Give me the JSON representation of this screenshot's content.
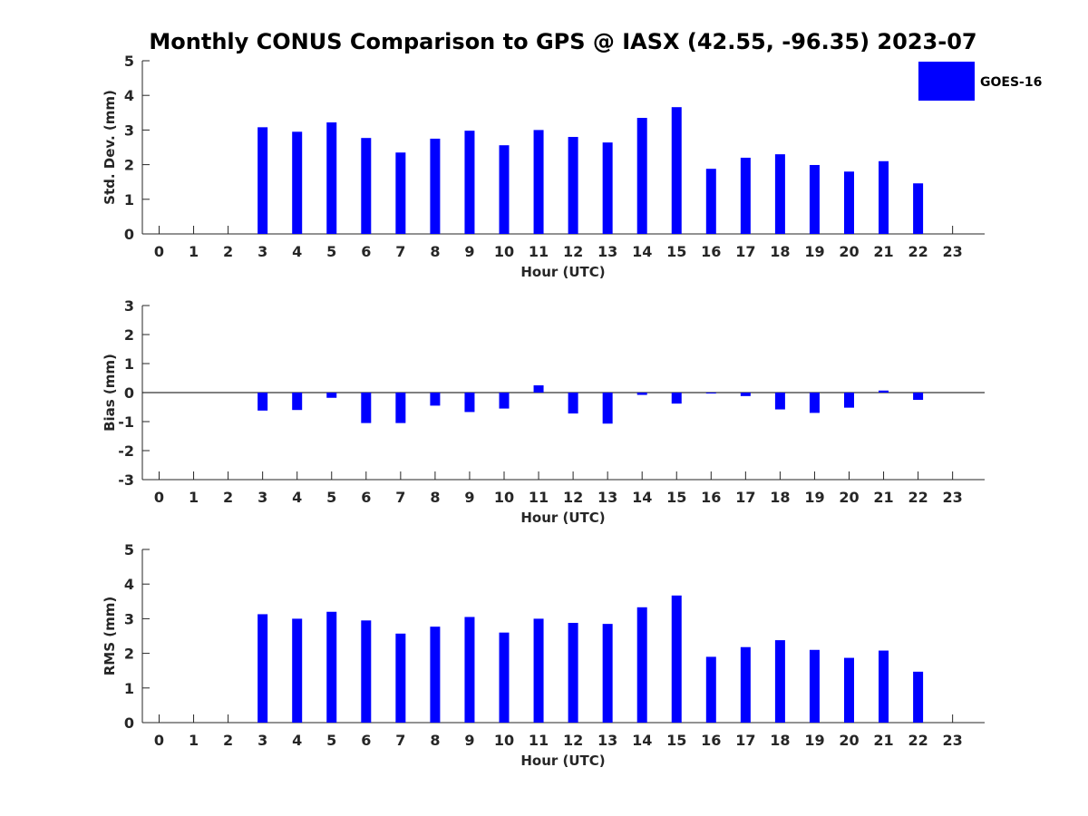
{
  "chart_data": {
    "type": "bar",
    "title": "Monthly CONUS Comparison to GPS @ IASX (42.55, -96.35) 2023-07",
    "legend": {
      "label": "GOES-16",
      "color": "#0000ff",
      "placement": "top-right"
    },
    "categories": [
      "0",
      "1",
      "2",
      "3",
      "4",
      "5",
      "6",
      "7",
      "8",
      "9",
      "10",
      "11",
      "12",
      "13",
      "14",
      "15",
      "16",
      "17",
      "18",
      "19",
      "20",
      "21",
      "22",
      "23"
    ],
    "grid": false,
    "panels": [
      {
        "xlabel": "Hour (UTC)",
        "ylabel": "Std. Dev. (mm)",
        "ylim": [
          0,
          5
        ],
        "yticks": [
          "0",
          "1",
          "2",
          "3",
          "4",
          "5"
        ],
        "series": [
          {
            "name": "GOES-16",
            "color": "#0000ff",
            "values": [
              null,
              null,
              null,
              3.08,
              2.95,
              3.22,
              2.77,
              2.35,
              2.75,
              2.98,
              2.56,
              3.0,
              2.8,
              2.64,
              3.35,
              3.66,
              1.88,
              2.2,
              2.3,
              1.99,
              1.8,
              2.1,
              1.46,
              null
            ]
          }
        ]
      },
      {
        "xlabel": "Hour (UTC)",
        "ylabel": "Bias (mm)",
        "ylim": [
          -3,
          3
        ],
        "yticks": [
          "-3",
          "-2",
          "-1",
          "0",
          "1",
          "2",
          "3"
        ],
        "series": [
          {
            "name": "GOES-16",
            "color": "#0000ff",
            "values": [
              null,
              null,
              null,
              -0.62,
              -0.6,
              -0.18,
              -1.05,
              -1.05,
              -0.45,
              -0.67,
              -0.55,
              0.25,
              -0.72,
              -1.07,
              -0.08,
              -0.38,
              -0.02,
              -0.12,
              -0.58,
              -0.7,
              -0.52,
              0.07,
              -0.25,
              null
            ]
          }
        ]
      },
      {
        "xlabel": "Hour (UTC)",
        "ylabel": "RMS (mm)",
        "ylim": [
          0,
          5
        ],
        "yticks": [
          "0",
          "1",
          "2",
          "3",
          "4",
          "5"
        ],
        "series": [
          {
            "name": "GOES-16",
            "color": "#0000ff",
            "values": [
              null,
              null,
              null,
              3.13,
              3.0,
              3.2,
              2.95,
              2.57,
              2.77,
              3.05,
              2.6,
              3.0,
              2.88,
              2.85,
              3.33,
              3.67,
              1.9,
              2.18,
              2.38,
              2.1,
              1.87,
              2.08,
              1.47,
              null
            ]
          }
        ]
      }
    ]
  }
}
